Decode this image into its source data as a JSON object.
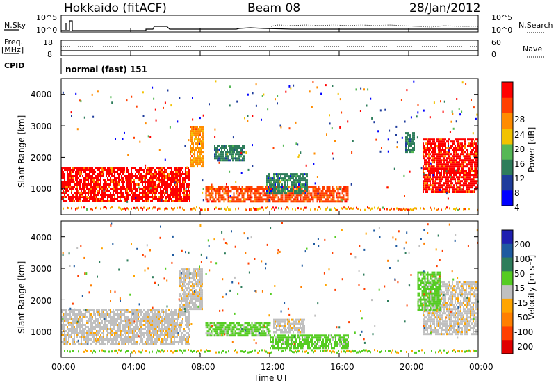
{
  "header": {
    "radar": "Hokkaido (fitACF)",
    "beam": "Beam 08",
    "date": "28/Jan/2012"
  },
  "sky_panel": {
    "left_label": "N.Sky",
    "right_label": "N.Search",
    "left_ticks": [
      "10^5",
      "10^0"
    ],
    "right_ticks": [
      "10^5",
      "10^0"
    ]
  },
  "freq_panel": {
    "left_label": "Freq.",
    "left_unit": "[MHz]",
    "left_ticks": [
      "18",
      "8"
    ],
    "right_label": "Nave",
    "right_ticks": [
      "60",
      "0"
    ]
  },
  "cpid": {
    "label": "CPID",
    "value": "normal (fast) 151"
  },
  "power_panel": {
    "ylabel": "Slant Range [km]",
    "yticks": [
      "4000",
      "3000",
      "2000",
      "1000"
    ],
    "colorbar_title": "Power [dB]",
    "colorbar_ticks": [
      "28",
      "24",
      "20",
      "16",
      "12",
      "8",
      "4"
    ],
    "colors": [
      "#0000ff",
      "#1e3c9c",
      "#2e7d5b",
      "#55b855",
      "#f2c200",
      "#ff8c00",
      "#ff4000",
      "#ff0000"
    ]
  },
  "velocity_panel": {
    "ylabel": "Slant Range [km]",
    "yticks": [
      "4000",
      "3000",
      "2000",
      "1000"
    ],
    "colorbar_title": "Velocity [m s⁻¹]",
    "colorbar_ticks": [
      "200",
      "100",
      "50",
      "15",
      "-15",
      "-50",
      "-100",
      "-200"
    ],
    "colors": [
      "#2020b0",
      "#1e5aa0",
      "#2e7d5b",
      "#55cc22",
      "#c0c0c0",
      "#ffa500",
      "#ff7f00",
      "#ff4000",
      "#e00000"
    ]
  },
  "x_axis": {
    "ticks": [
      "00:00",
      "04:00",
      "08:00",
      "12:00",
      "16:00",
      "20:00",
      "00:00"
    ],
    "label": "Time UT"
  },
  "chart_data": [
    {
      "type": "heatmap",
      "panel": "power",
      "x_range_hours": [
        0,
        24
      ],
      "y_range_km": [
        180,
        4500
      ],
      "colorbar_range_db": [
        0,
        30
      ],
      "echo_regions": [
        {
          "x": [
            0,
            7.4
          ],
          "y": [
            600,
            1700
          ],
          "value": 28
        },
        {
          "x": [
            7.4,
            8.2
          ],
          "y": [
            1700,
            3000
          ],
          "value": 22
        },
        {
          "x": [
            8.3,
            16.5
          ],
          "y": [
            600,
            1100
          ],
          "value": 26
        },
        {
          "x": [
            8.8,
            10.5
          ],
          "y": [
            1900,
            2400
          ],
          "value": 10
        },
        {
          "x": [
            11.8,
            14.2
          ],
          "y": [
            900,
            1500
          ],
          "value": 8
        },
        {
          "x": [
            20.8,
            24
          ],
          "y": [
            900,
            2600
          ],
          "value": 28
        },
        {
          "x": [
            19.8,
            20.3
          ],
          "y": [
            2200,
            2800
          ],
          "value": 10
        }
      ]
    },
    {
      "type": "heatmap",
      "panel": "velocity",
      "x_range_hours": [
        0,
        24
      ],
      "y_range_km": [
        180,
        4500
      ],
      "colorbar_range_ms": [
        -200,
        200
      ],
      "echo_regions": [
        {
          "x": [
            0,
            7.4
          ],
          "y": [
            600,
            1700
          ],
          "value": 0
        },
        {
          "x": [
            6.8,
            8.1
          ],
          "y": [
            1700,
            3000
          ],
          "value": 0
        },
        {
          "x": [
            8.3,
            12.0
          ],
          "y": [
            900,
            1300
          ],
          "value": 30
        },
        {
          "x": [
            12.0,
            16.5
          ],
          "y": [
            500,
            900
          ],
          "value": 30
        },
        {
          "x": [
            12.2,
            14.0
          ],
          "y": [
            1000,
            1400
          ],
          "value": 0
        },
        {
          "x": [
            20.8,
            24
          ],
          "y": [
            900,
            2600
          ],
          "value": 0
        },
        {
          "x": [
            20.5,
            21.8
          ],
          "y": [
            1700,
            2900
          ],
          "value": 30
        }
      ]
    }
  ]
}
